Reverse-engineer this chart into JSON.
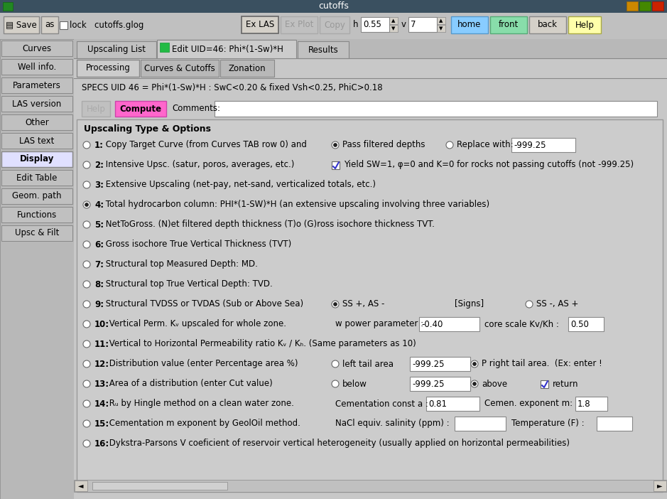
{
  "title": "cutoffs",
  "bg_color": "#c0c0c0",
  "title_bar_color": "#3a5a6a",
  "left_panel_buttons": [
    "Curves",
    "Well info.",
    "Parameters",
    "LAS version",
    "Other",
    "LAS text",
    "Display",
    "Edit Table",
    "Geom. path",
    "Functions",
    "Upsc & Filt"
  ],
  "specs_text": "SPECS UID 46 = Phi*(1-Sw)*H : SwC<0.20 & fixed Vsh<0.25, PhiC>0.18",
  "compute_btn_color": "#ff66cc",
  "section_title": "Upscaling Type & Options",
  "window_bg": "#c8c8c8",
  "panel_bg": "#cccccc",
  "tab_active_color": "#d0d0d0",
  "tab_inactive_color": "#b8b8b8",
  "green_marker": "#22bb44",
  "home_btn_color": "#88ccff",
  "front_btn_color": "#88ddaa",
  "back_btn_color": "#d4d0c8",
  "help_btn_color": "#ffffaa",
  "toolbar_bg": "#c0c0c0",
  "titlebar_bg": "#3a5060"
}
